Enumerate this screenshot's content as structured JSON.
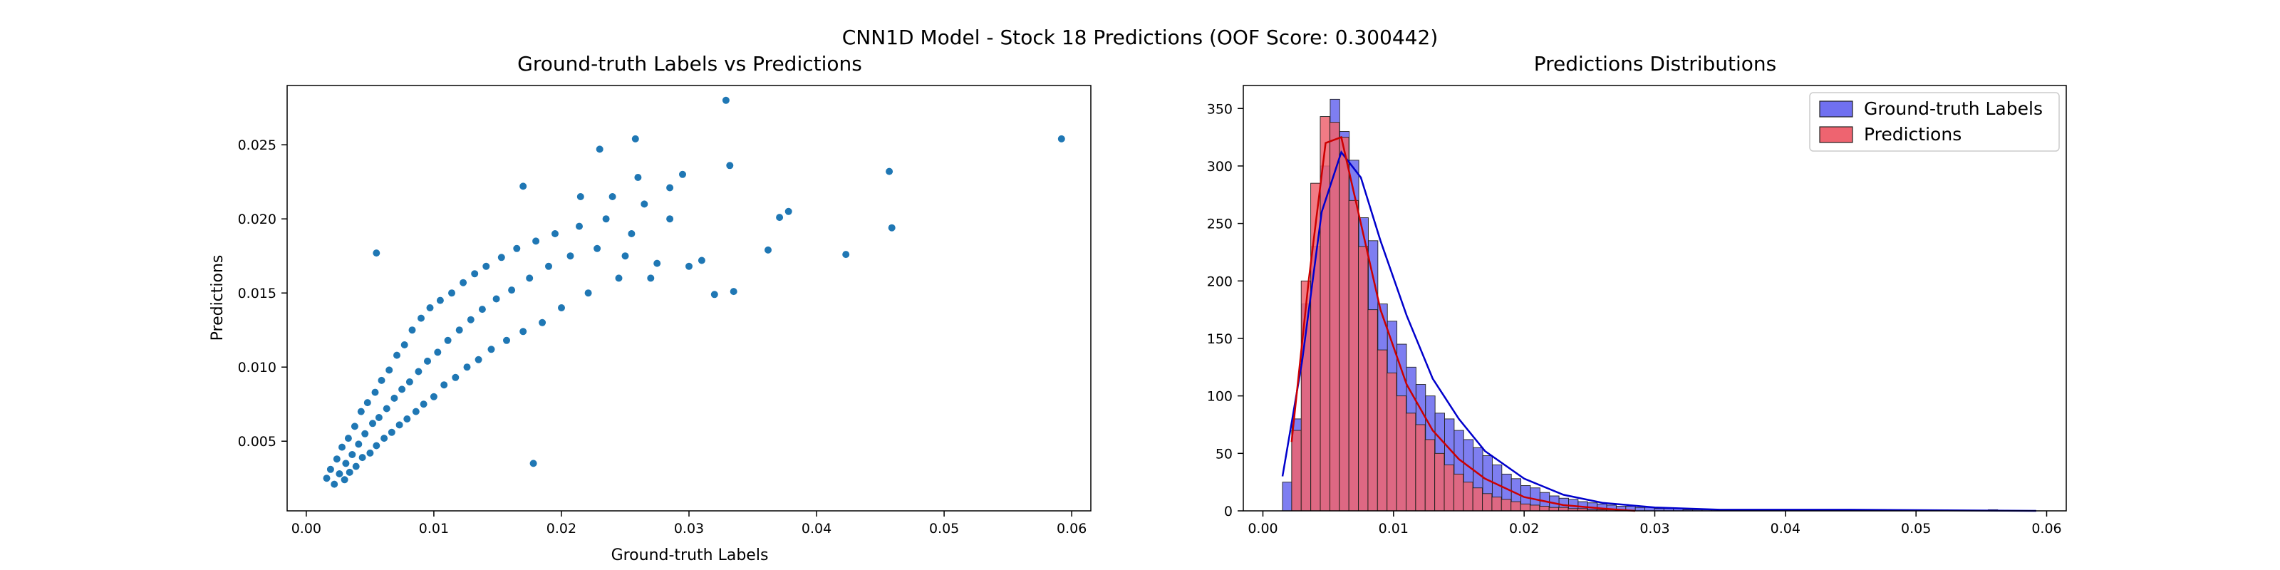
{
  "figure": {
    "suptitle": "CNN1D Model - Stock 18 Predictions (OOF Score: 0.300442)",
    "colors": {
      "scatter_point": "#1f77b4",
      "hist_truth_fill": "#7070f0",
      "hist_pred_fill": "#ee6470",
      "truth_kde": "#0000cc",
      "pred_kde": "#cc0000",
      "bar_edge": "#222222",
      "axis": "#000000"
    }
  },
  "chart_data": [
    {
      "type": "scatter",
      "title": "Ground-truth Labels vs Predictions",
      "xlabel": "Ground-truth Labels",
      "ylabel": "Predictions",
      "xlim": [
        -0.0015,
        0.0615
      ],
      "ylim": [
        0.0003,
        0.029
      ],
      "x_ticks": [
        "0.00",
        "0.01",
        "0.02",
        "0.03",
        "0.04",
        "0.05",
        "0.06"
      ],
      "y_ticks": [
        "0.005",
        "0.010",
        "0.015",
        "0.020",
        "0.025"
      ],
      "grid": false,
      "marker": "filled circle with white edge",
      "points": [
        [
          0.0016,
          0.0025
        ],
        [
          0.0019,
          0.0031
        ],
        [
          0.0022,
          0.0021
        ],
        [
          0.0024,
          0.0038
        ],
        [
          0.0026,
          0.0028
        ],
        [
          0.0028,
          0.0046
        ],
        [
          0.003,
          0.0024
        ],
        [
          0.0031,
          0.0035
        ],
        [
          0.0033,
          0.0052
        ],
        [
          0.0034,
          0.0029
        ],
        [
          0.0036,
          0.0041
        ],
        [
          0.0038,
          0.006
        ],
        [
          0.0039,
          0.0033
        ],
        [
          0.0041,
          0.0048
        ],
        [
          0.0043,
          0.007
        ],
        [
          0.0044,
          0.0039
        ],
        [
          0.0046,
          0.0055
        ],
        [
          0.0048,
          0.0076
        ],
        [
          0.005,
          0.0042
        ],
        [
          0.0052,
          0.0062
        ],
        [
          0.0054,
          0.0083
        ],
        [
          0.0055,
          0.0047
        ],
        [
          0.0057,
          0.0066
        ],
        [
          0.0059,
          0.0091
        ],
        [
          0.0061,
          0.0052
        ],
        [
          0.0063,
          0.0072
        ],
        [
          0.0065,
          0.0098
        ],
        [
          0.0067,
          0.0056
        ],
        [
          0.0069,
          0.0079
        ],
        [
          0.0071,
          0.0108
        ],
        [
          0.0073,
          0.0061
        ],
        [
          0.0075,
          0.0085
        ],
        [
          0.0077,
          0.0115
        ],
        [
          0.0079,
          0.0065
        ],
        [
          0.0081,
          0.009
        ],
        [
          0.0083,
          0.0125
        ],
        [
          0.0086,
          0.007
        ],
        [
          0.0088,
          0.0097
        ],
        [
          0.009,
          0.0133
        ],
        [
          0.0092,
          0.0075
        ],
        [
          0.0095,
          0.0104
        ],
        [
          0.0097,
          0.014
        ],
        [
          0.01,
          0.008
        ],
        [
          0.0103,
          0.011
        ],
        [
          0.0105,
          0.0145
        ],
        [
          0.0108,
          0.0088
        ],
        [
          0.0111,
          0.0118
        ],
        [
          0.0114,
          0.015
        ],
        [
          0.0117,
          0.0093
        ],
        [
          0.012,
          0.0125
        ],
        [
          0.0123,
          0.0157
        ],
        [
          0.0126,
          0.01
        ],
        [
          0.0129,
          0.0132
        ],
        [
          0.0132,
          0.0163
        ],
        [
          0.0135,
          0.0105
        ],
        [
          0.0138,
          0.0139
        ],
        [
          0.0141,
          0.0168
        ],
        [
          0.0145,
          0.0112
        ],
        [
          0.0149,
          0.0146
        ],
        [
          0.0153,
          0.0174
        ],
        [
          0.0157,
          0.0118
        ],
        [
          0.0161,
          0.0152
        ],
        [
          0.0165,
          0.018
        ],
        [
          0.017,
          0.0124
        ],
        [
          0.0175,
          0.016
        ],
        [
          0.018,
          0.0185
        ],
        [
          0.0185,
          0.013
        ],
        [
          0.019,
          0.0168
        ],
        [
          0.0195,
          0.019
        ],
        [
          0.02,
          0.014
        ],
        [
          0.0207,
          0.0175
        ],
        [
          0.0214,
          0.0195
        ],
        [
          0.0221,
          0.015
        ],
        [
          0.0228,
          0.018
        ],
        [
          0.0235,
          0.02
        ],
        [
          0.0245,
          0.016
        ],
        [
          0.0255,
          0.019
        ],
        [
          0.0265,
          0.021
        ],
        [
          0.0275,
          0.017
        ],
        [
          0.0285,
          0.02
        ],
        [
          0.0055,
          0.0177
        ],
        [
          0.0178,
          0.0035
        ],
        [
          0.017,
          0.0222
        ],
        [
          0.023,
          0.0247
        ],
        [
          0.0258,
          0.0254
        ],
        [
          0.0329,
          0.028
        ],
        [
          0.0332,
          0.0236
        ],
        [
          0.0335,
          0.0151
        ],
        [
          0.0362,
          0.0179
        ],
        [
          0.0371,
          0.0201
        ],
        [
          0.0378,
          0.0205
        ],
        [
          0.0423,
          0.0176
        ],
        [
          0.0457,
          0.0232
        ],
        [
          0.0459,
          0.0194
        ],
        [
          0.0592,
          0.0254
        ],
        [
          0.03,
          0.0168
        ],
        [
          0.031,
          0.0172
        ],
        [
          0.032,
          0.0149
        ],
        [
          0.0285,
          0.0221
        ],
        [
          0.0295,
          0.023
        ],
        [
          0.027,
          0.016
        ],
        [
          0.026,
          0.0228
        ],
        [
          0.025,
          0.0175
        ],
        [
          0.024,
          0.0215
        ],
        [
          0.0215,
          0.0215
        ]
      ]
    },
    {
      "type": "histogram",
      "title": "Predictions Distributions",
      "xlabel": "",
      "ylabel": "",
      "xlim": [
        -0.0015,
        0.0615
      ],
      "ylim": [
        0,
        370
      ],
      "x_ticks": [
        "0.00",
        "0.01",
        "0.02",
        "0.03",
        "0.04",
        "0.05",
        "0.06"
      ],
      "y_ticks": [
        "0",
        "50",
        "100",
        "150",
        "200",
        "250",
        "300",
        "350"
      ],
      "legend_position": "top-right",
      "bin_width": 0.00073,
      "series": [
        {
          "name": "Ground-truth Labels",
          "bins_start": 0.0015,
          "counts": [
            25,
            80,
            180,
            230,
            300,
            358,
            330,
            305,
            255,
            235,
            180,
            165,
            145,
            125,
            110,
            100,
            85,
            80,
            70,
            62,
            55,
            48,
            40,
            32,
            28,
            22,
            20,
            16,
            13,
            11,
            10,
            8,
            7,
            6,
            5,
            4,
            4,
            3,
            3,
            2,
            2,
            2,
            1,
            1,
            1,
            1,
            0,
            0,
            1,
            0,
            0,
            0,
            0,
            0,
            0,
            0,
            0,
            0,
            0,
            0,
            0,
            0,
            0,
            0,
            0,
            0,
            0,
            0,
            0,
            0,
            0,
            0,
            0,
            0,
            1
          ],
          "kde": [
            [
              0.0015,
              30
            ],
            [
              0.003,
              130
            ],
            [
              0.0045,
              260
            ],
            [
              0.006,
              312
            ],
            [
              0.0075,
              290
            ],
            [
              0.009,
              235
            ],
            [
              0.011,
              170
            ],
            [
              0.013,
              115
            ],
            [
              0.015,
              80
            ],
            [
              0.017,
              52
            ],
            [
              0.02,
              28
            ],
            [
              0.023,
              14
            ],
            [
              0.026,
              7
            ],
            [
              0.03,
              3
            ],
            [
              0.035,
              1
            ],
            [
              0.045,
              1
            ],
            [
              0.0592,
              0
            ]
          ]
        },
        {
          "name": "Predictions",
          "bins_start": 0.0022,
          "counts": [
            70,
            200,
            285,
            343,
            338,
            325,
            270,
            230,
            175,
            140,
            120,
            100,
            85,
            75,
            62,
            50,
            40,
            32,
            25,
            20,
            15,
            12,
            10,
            8,
            6,
            5,
            4,
            3,
            3,
            2,
            2,
            1,
            1,
            1
          ],
          "kde": [
            [
              0.0022,
              60
            ],
            [
              0.0035,
              200
            ],
            [
              0.0048,
              320
            ],
            [
              0.006,
              325
            ],
            [
              0.0075,
              250
            ],
            [
              0.009,
              175
            ],
            [
              0.011,
              110
            ],
            [
              0.013,
              70
            ],
            [
              0.015,
              45
            ],
            [
              0.017,
              28
            ],
            [
              0.02,
              12
            ],
            [
              0.023,
              5
            ],
            [
              0.026,
              2
            ],
            [
              0.0285,
              0
            ]
          ]
        }
      ]
    }
  ]
}
